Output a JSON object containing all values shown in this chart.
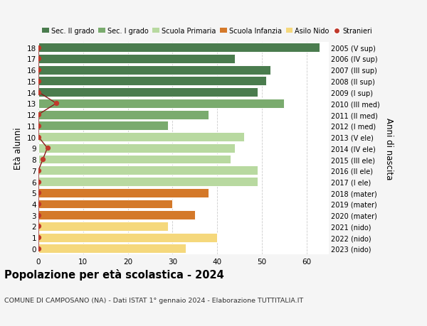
{
  "ages": [
    18,
    17,
    16,
    15,
    14,
    13,
    12,
    11,
    10,
    9,
    8,
    7,
    6,
    5,
    4,
    3,
    2,
    1,
    0
  ],
  "years": [
    "2005 (V sup)",
    "2006 (IV sup)",
    "2007 (III sup)",
    "2008 (II sup)",
    "2009 (I sup)",
    "2010 (III med)",
    "2011 (II med)",
    "2012 (I med)",
    "2013 (V ele)",
    "2014 (IV ele)",
    "2015 (III ele)",
    "2016 (II ele)",
    "2017 (I ele)",
    "2018 (mater)",
    "2019 (mater)",
    "2020 (mater)",
    "2021 (nido)",
    "2022 (nido)",
    "2023 (nido)"
  ],
  "values": [
    63,
    44,
    52,
    51,
    49,
    55,
    38,
    29,
    46,
    44,
    43,
    49,
    49,
    38,
    30,
    35,
    29,
    40,
    33
  ],
  "bar_colors": [
    "#4a7c4e",
    "#4a7c4e",
    "#4a7c4e",
    "#4a7c4e",
    "#4a7c4e",
    "#7aab6e",
    "#7aab6e",
    "#7aab6e",
    "#b8d9a0",
    "#b8d9a0",
    "#b8d9a0",
    "#b8d9a0",
    "#b8d9a0",
    "#d4792a",
    "#d4792a",
    "#d4792a",
    "#f5d87c",
    "#f5d87c",
    "#f5d87c"
  ],
  "stranieri_values": [
    0,
    0,
    0,
    0,
    0,
    4,
    0,
    0,
    0,
    2,
    1,
    0,
    0,
    0,
    0,
    0,
    0,
    0,
    0
  ],
  "legend_labels": [
    "Sec. II grado",
    "Sec. I grado",
    "Scuola Primaria",
    "Scuola Infanzia",
    "Asilo Nido",
    "Stranieri"
  ],
  "legend_colors": [
    "#4a7c4e",
    "#7aab6e",
    "#b8d9a0",
    "#d4792a",
    "#f5d87c",
    "#c0392b"
  ],
  "title": "Popolazione per età scolastica - 2024",
  "subtitle": "COMUNE DI CAMPOSANO (NA) - Dati ISTAT 1° gennaio 2024 - Elaborazione TUTTITALIA.IT",
  "ylabel_left": "Età alunni",
  "ylabel_right": "Anni di nascita",
  "bg_color": "#f5f5f5",
  "bar_bg_color": "#ffffff",
  "grid_color": "#cccccc",
  "xlim": [
    0,
    65
  ],
  "stranieri_line_color": "#8b1a1a",
  "stranieri_dot_color": "#c0392b"
}
